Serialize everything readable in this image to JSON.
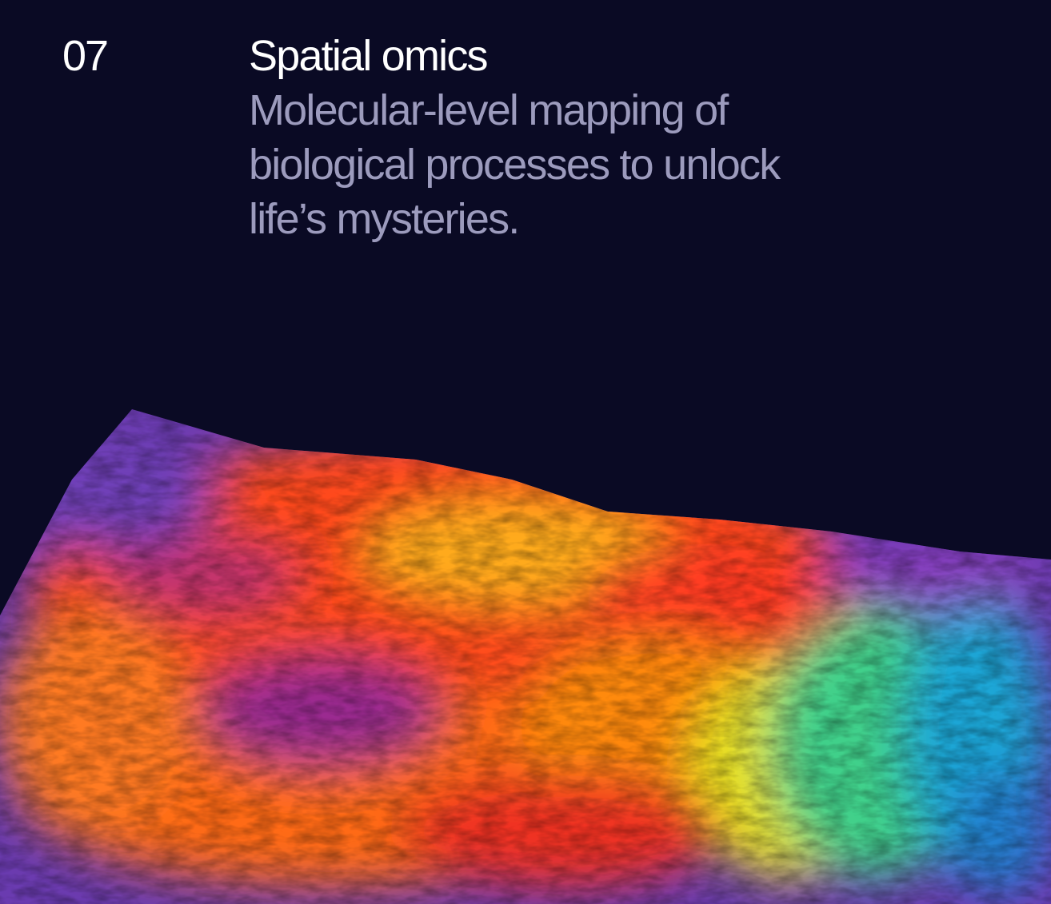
{
  "slide": {
    "number": "07",
    "title": "Spatial omics",
    "subtitle": "Molecular-level mapping of biological processes to unlock life’s mysteries."
  },
  "image": {
    "subject": "spatial-omics-heatmap-terrain",
    "colors": {
      "background": "#0a0a24",
      "title": "#ffffff",
      "subtitle": "#9c9bbd"
    }
  }
}
